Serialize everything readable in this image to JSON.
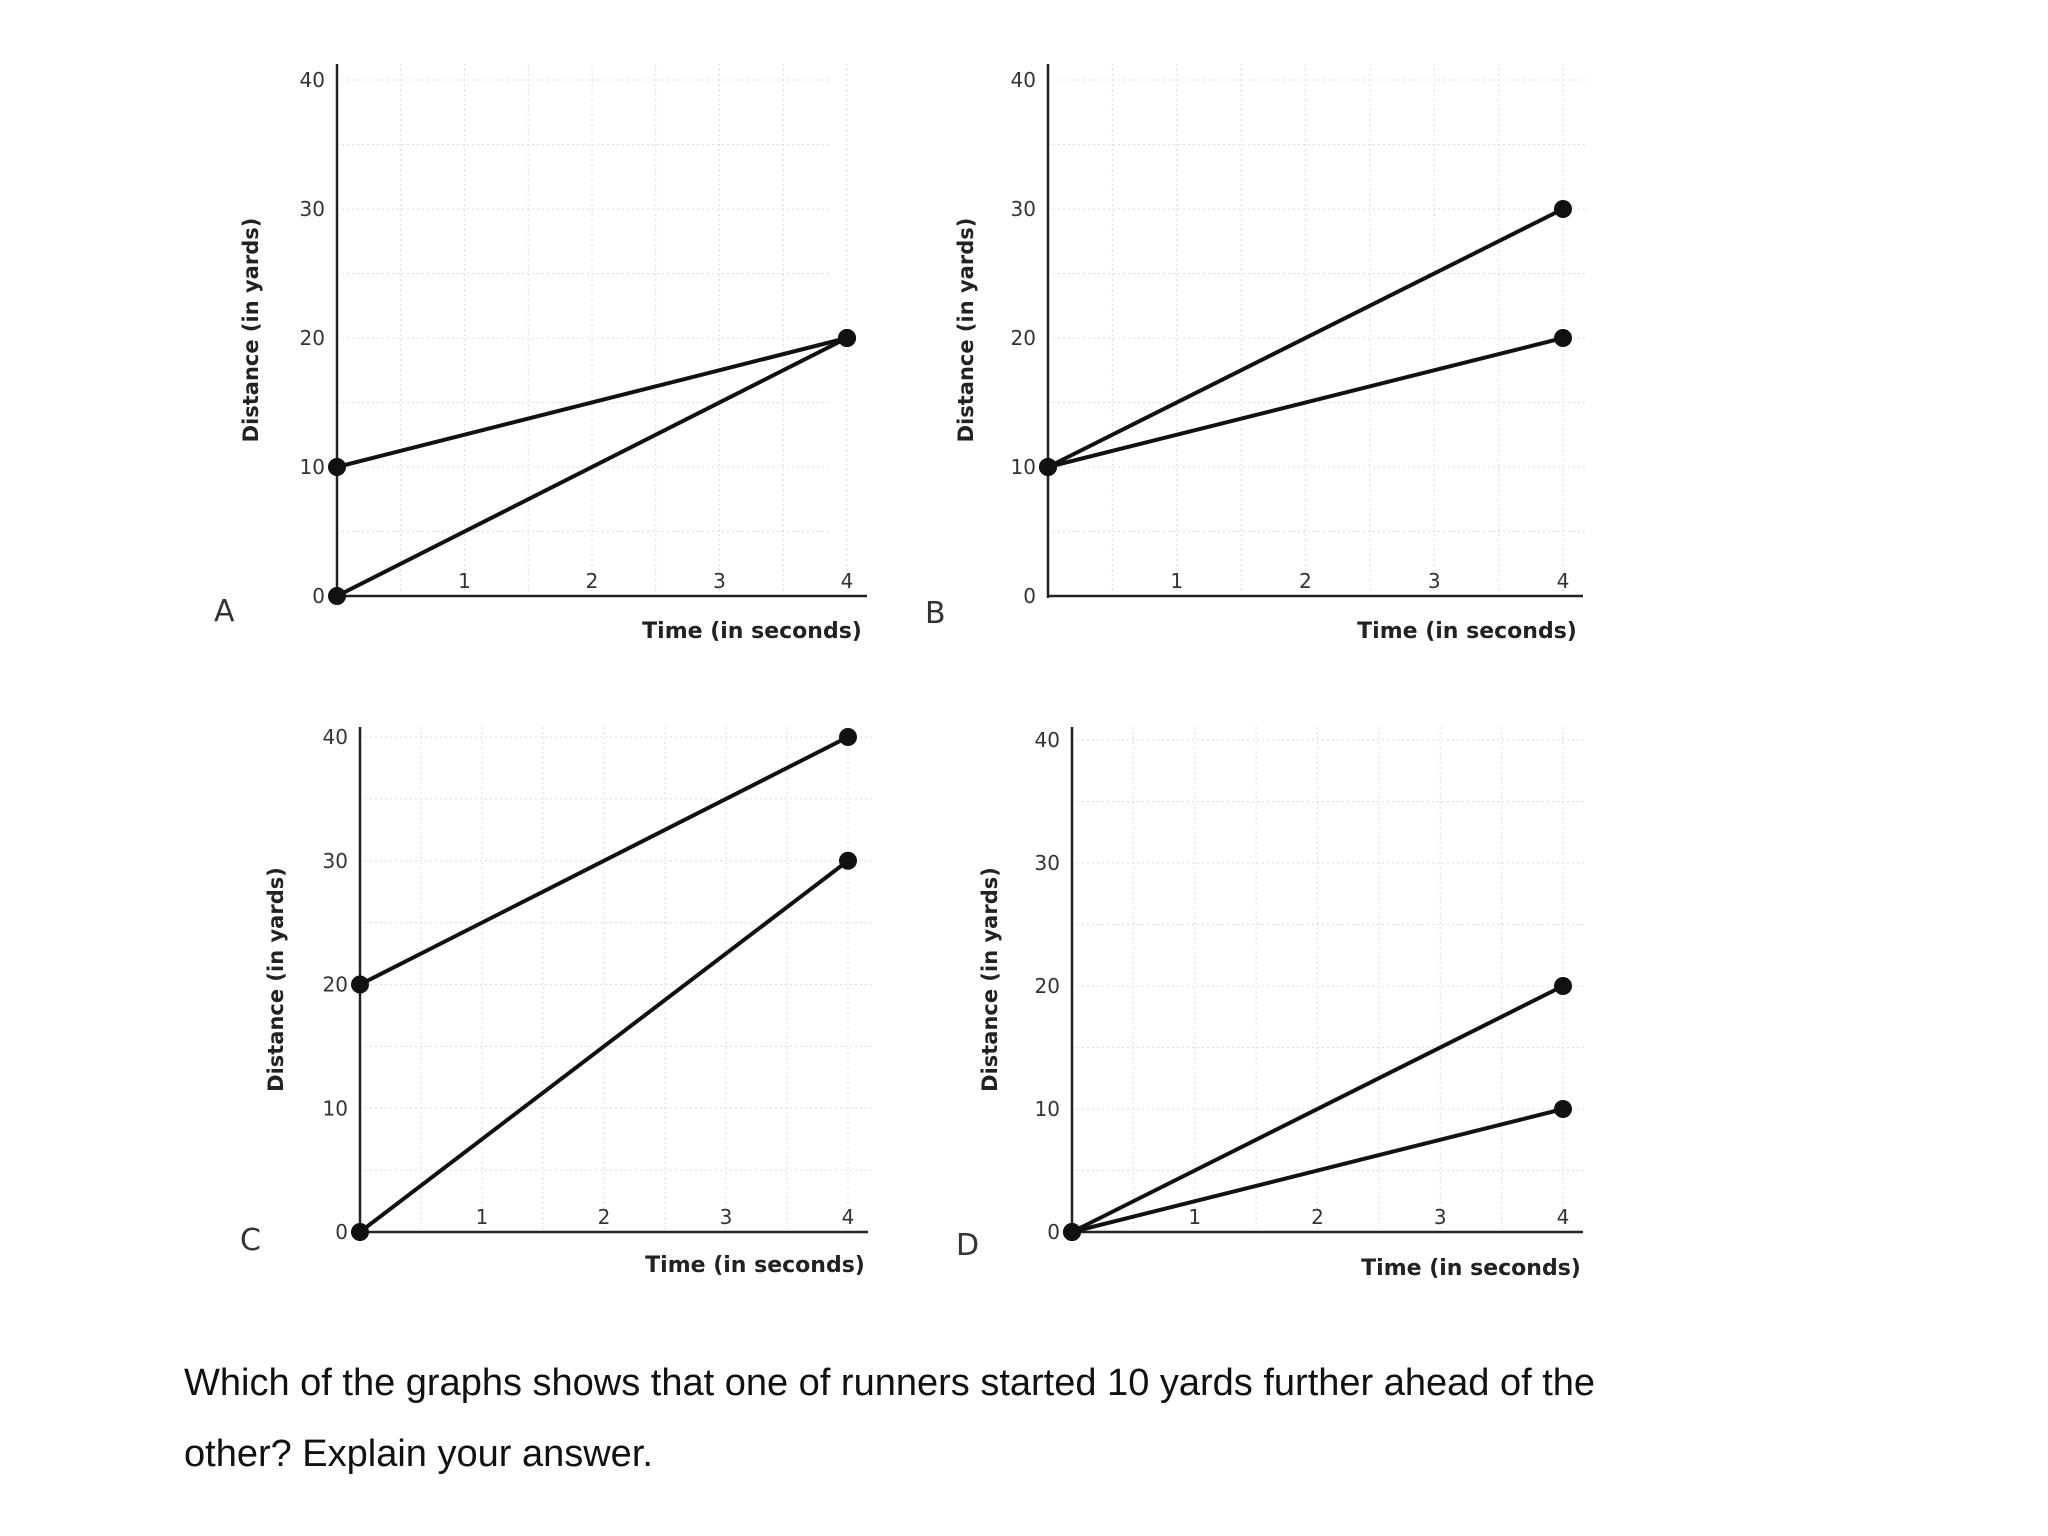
{
  "chart_data": [
    {
      "panel": "A",
      "type": "line",
      "xlabel": "Time (in seconds)",
      "ylabel": "Distance (in yards)",
      "xlim": [
        0,
        4
      ],
      "ylim": [
        0,
        40
      ],
      "x_ticks": [
        "1",
        "2",
        "3",
        "4"
      ],
      "y_ticks": [
        "0",
        "10",
        "20",
        "30",
        "40"
      ],
      "grid": true,
      "series": [
        {
          "x": [
            0,
            4
          ],
          "y": [
            10,
            20
          ],
          "stroke": "#111111"
        },
        {
          "x": [
            0,
            4
          ],
          "y": [
            0,
            20
          ],
          "stroke": "#111111"
        }
      ]
    },
    {
      "panel": "B",
      "type": "line",
      "xlabel": "Time (in seconds)",
      "ylabel": "Distance (in yards)",
      "xlim": [
        0,
        4
      ],
      "ylim": [
        0,
        40
      ],
      "x_ticks": [
        "1",
        "2",
        "3",
        "4"
      ],
      "y_ticks": [
        "0",
        "10",
        "20",
        "30",
        "40"
      ],
      "grid": true,
      "series": [
        {
          "x": [
            0,
            4
          ],
          "y": [
            10,
            30
          ],
          "stroke": "#111111"
        },
        {
          "x": [
            0,
            4
          ],
          "y": [
            10,
            20
          ],
          "stroke": "#111111"
        }
      ]
    },
    {
      "panel": "C",
      "type": "line",
      "xlabel": "Time (in seconds)",
      "ylabel": "Distance (in yards)",
      "xlim": [
        0,
        4
      ],
      "ylim": [
        0,
        40
      ],
      "x_ticks": [
        "1",
        "2",
        "3",
        "4"
      ],
      "y_ticks": [
        "0",
        "10",
        "20",
        "30",
        "40"
      ],
      "grid": true,
      "series": [
        {
          "x": [
            0,
            4
          ],
          "y": [
            20,
            40
          ],
          "stroke": "#111111"
        },
        {
          "x": [
            0,
            4
          ],
          "y": [
            0,
            30
          ],
          "stroke": "#111111"
        }
      ]
    },
    {
      "panel": "D",
      "type": "line",
      "xlabel": "Time (in seconds)",
      "ylabel": "Distance (in yards)",
      "xlim": [
        0,
        4
      ],
      "ylim": [
        0,
        40
      ],
      "x_ticks": [
        "1",
        "2",
        "3",
        "4"
      ],
      "y_ticks": [
        "0",
        "10",
        "20",
        "30",
        "40"
      ],
      "grid": true,
      "series": [
        {
          "x": [
            0,
            4
          ],
          "y": [
            0,
            20
          ],
          "stroke": "#111111"
        },
        {
          "x": [
            0,
            4
          ],
          "y": [
            0,
            10
          ],
          "stroke": "#111111"
        }
      ]
    }
  ],
  "question": {
    "line1": "Which of the graphs shows that one of runners started 10 yards further ahead of the",
    "line2": "other?  Explain your answer."
  }
}
